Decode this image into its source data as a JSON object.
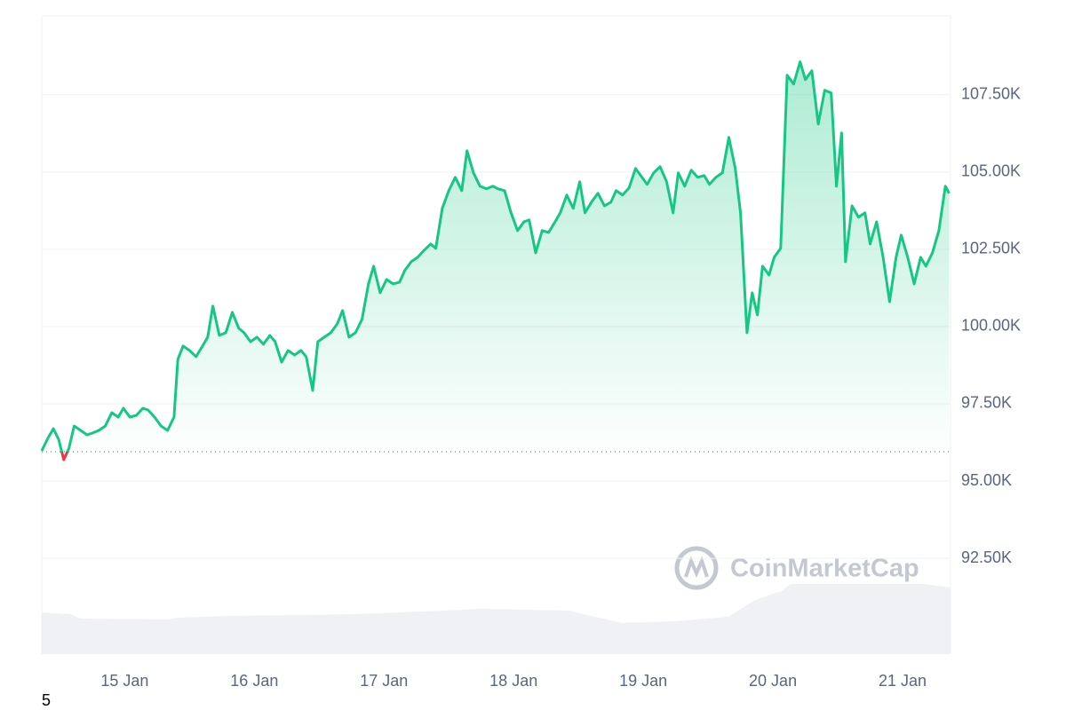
{
  "chart_data": {
    "type": "line",
    "watermark": "CoinMarketCap",
    "footnote": "5",
    "color": "#16c784",
    "below_color": "#ea3943",
    "baseline": 95950,
    "xlim": [
      14.36,
      21.37
    ],
    "ylim": [
      89400,
      110050
    ],
    "xticks": [
      {
        "value": 15,
        "label": "15 Jan"
      },
      {
        "value": 16,
        "label": "16 Jan"
      },
      {
        "value": 17,
        "label": "17 Jan"
      },
      {
        "value": 18,
        "label": "18 Jan"
      },
      {
        "value": 19,
        "label": "19 Jan"
      },
      {
        "value": 20,
        "label": "20 Jan"
      },
      {
        "value": 21,
        "label": "21 Jan"
      }
    ],
    "yticks": [
      {
        "value": 92500,
        "label": "92.50K"
      },
      {
        "value": 95000,
        "label": "95.00K"
      },
      {
        "value": 97500,
        "label": "97.50K"
      },
      {
        "value": 100000,
        "label": "100.00K"
      },
      {
        "value": 102500,
        "label": "102.50K"
      },
      {
        "value": 105000,
        "label": "105.00K"
      },
      {
        "value": 107500,
        "label": "107.50K"
      }
    ],
    "grid": true,
    "x": [
      14.36,
      14.41,
      14.45,
      14.49,
      14.53,
      14.57,
      14.61,
      14.66,
      14.71,
      14.75,
      14.8,
      14.85,
      14.9,
      14.95,
      14.99,
      15.04,
      15.09,
      15.14,
      15.18,
      15.23,
      15.28,
      15.33,
      15.38,
      15.41,
      15.45,
      15.5,
      15.55,
      15.6,
      15.64,
      15.68,
      15.73,
      15.78,
      15.83,
      15.88,
      15.92,
      15.97,
      16.02,
      16.07,
      16.12,
      16.16,
      16.21,
      16.26,
      16.31,
      16.36,
      16.4,
      16.45,
      16.49,
      16.54,
      16.59,
      16.64,
      16.68,
      16.73,
      16.78,
      16.83,
      16.88,
      16.92,
      16.97,
      17.02,
      17.07,
      17.12,
      17.16,
      17.21,
      17.26,
      17.31,
      17.36,
      17.4,
      17.45,
      17.5,
      17.55,
      17.6,
      17.64,
      17.69,
      17.74,
      17.79,
      17.84,
      17.88,
      17.93,
      17.98,
      18.03,
      18.08,
      18.12,
      18.17,
      18.22,
      18.27,
      18.32,
      18.36,
      18.41,
      18.46,
      18.51,
      18.55,
      18.6,
      18.65,
      18.7,
      18.75,
      18.79,
      18.84,
      18.89,
      18.94,
      18.99,
      19.03,
      19.08,
      19.13,
      19.18,
      19.23,
      19.27,
      19.32,
      19.37,
      19.42,
      19.47,
      19.51,
      19.56,
      19.61,
      19.66,
      19.71,
      19.75,
      19.8,
      19.84,
      19.88,
      19.92,
      19.97,
      20.01,
      20.06,
      20.11,
      20.16,
      20.21,
      20.25,
      20.3,
      20.35,
      20.4,
      20.45,
      20.49,
      20.53,
      20.56,
      20.61,
      20.66,
      20.71,
      20.75,
      20.8,
      20.85,
      20.9,
      20.95,
      20.99,
      21.04,
      21.09,
      21.14,
      21.18,
      21.23,
      21.28,
      21.33,
      21.36
    ],
    "values": [
      95977,
      96408,
      96695,
      96350,
      95690,
      96063,
      96781,
      96638,
      96494,
      96551,
      96638,
      96781,
      97212,
      97069,
      97356,
      97069,
      97126,
      97356,
      97299,
      97069,
      96781,
      96638,
      97069,
      98937,
      99368,
      99224,
      99023,
      99368,
      99655,
      100661,
      99713,
      99799,
      100460,
      99943,
      99799,
      99511,
      99655,
      99425,
      99713,
      99511,
      98850,
      99224,
      99080,
      99224,
      99023,
      97931,
      99511,
      99655,
      99799,
      100086,
      100517,
      99655,
      99799,
      100230,
      101380,
      101954,
      101092,
      101523,
      101380,
      101437,
      101811,
      102098,
      102242,
      102472,
      102673,
      102530,
      103822,
      104397,
      104828,
      104397,
      105691,
      104972,
      104541,
      104455,
      104541,
      104455,
      104397,
      103679,
      103104,
      103391,
      103449,
      102385,
      103104,
      103046,
      103391,
      103679,
      104253,
      103822,
      104685,
      103679,
      104024,
      104311,
      103908,
      104024,
      104397,
      104253,
      104483,
      105116,
      104828,
      104598,
      104972,
      105173,
      104685,
      103679,
      104972,
      104541,
      105058,
      104828,
      104885,
      104598,
      104828,
      104972,
      106122,
      105116,
      103679,
      99799,
      101092,
      100374,
      101954,
      101667,
      102242,
      102530,
      108133,
      107846,
      108565,
      107990,
      108277,
      106553,
      107645,
      107559,
      104541,
      106266,
      102098,
      103908,
      103535,
      103679,
      102673,
      103391,
      102242,
      100805,
      102242,
      102960,
      102242,
      101380,
      102242,
      101954,
      102385,
      103104,
      104541,
      104311
    ]
  }
}
